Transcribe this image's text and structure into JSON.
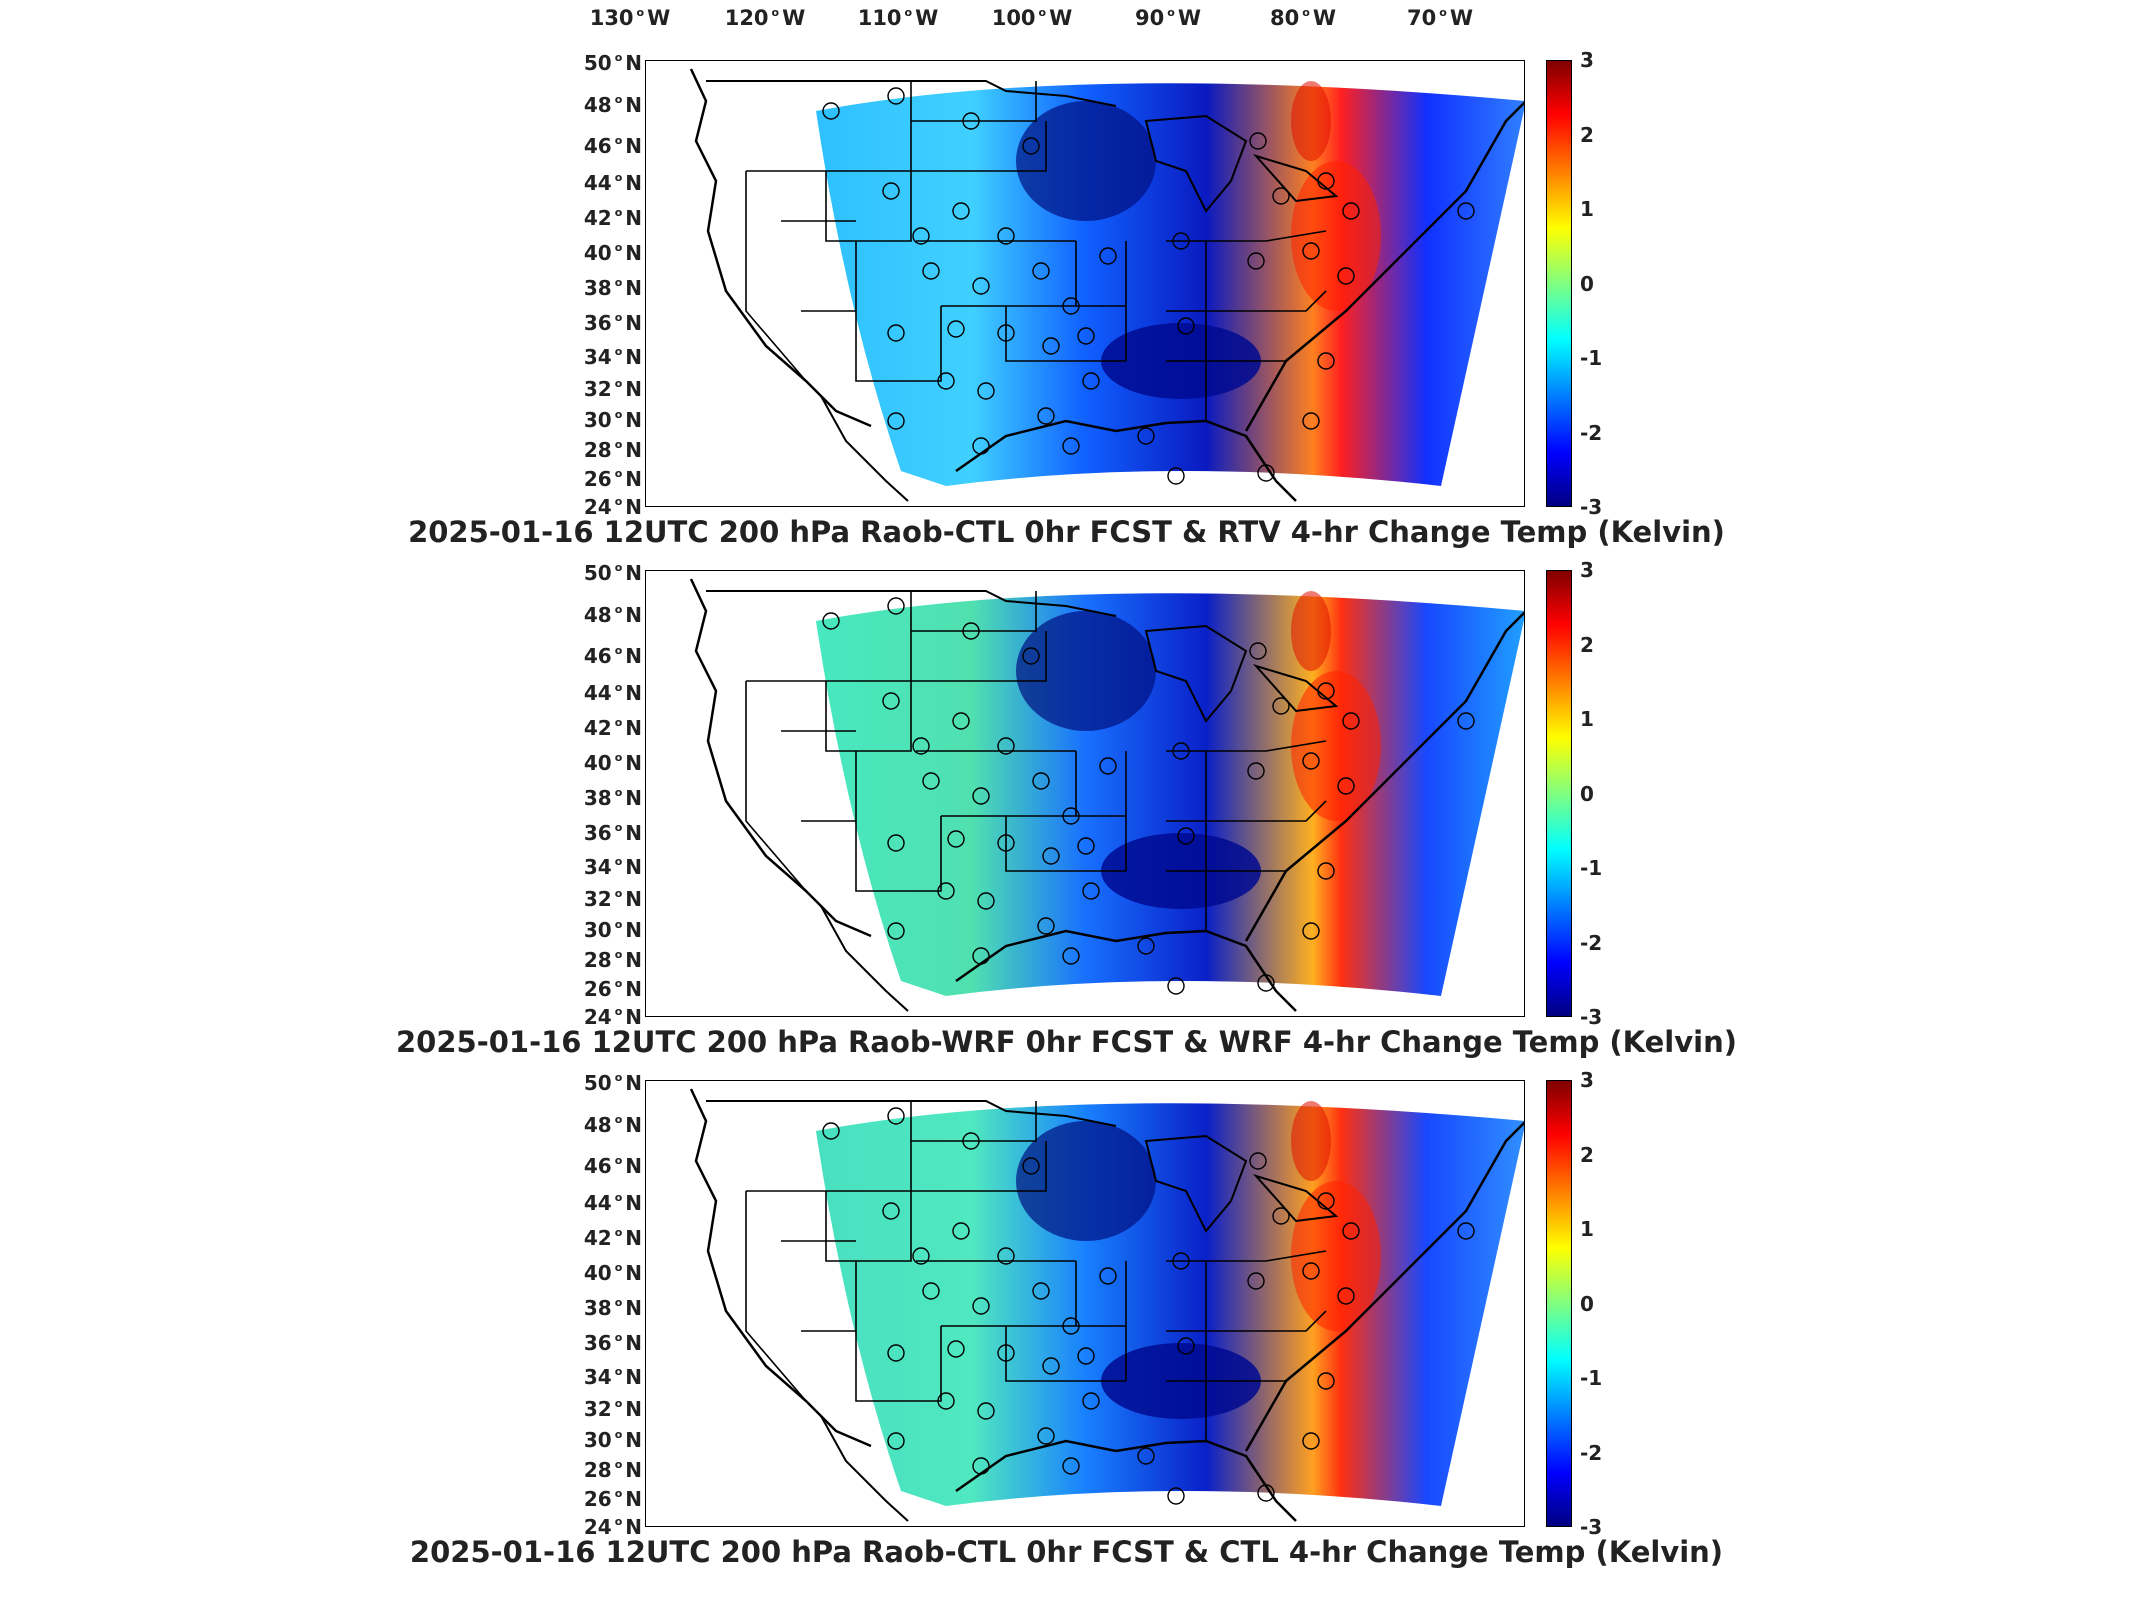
{
  "longitude_labels": [
    {
      "deg": "130",
      "dir": "W"
    },
    {
      "deg": "120",
      "dir": "W"
    },
    {
      "deg": "110",
      "dir": "W"
    },
    {
      "deg": "100",
      "dir": "W"
    },
    {
      "deg": "90",
      "dir": "W"
    },
    {
      "deg": "80",
      "dir": "W"
    },
    {
      "deg": "70",
      "dir": "W"
    }
  ],
  "latitude_labels": [
    {
      "deg": "50",
      "dir": "N"
    },
    {
      "deg": "48",
      "dir": "N"
    },
    {
      "deg": "46",
      "dir": "N"
    },
    {
      "deg": "44",
      "dir": "N"
    },
    {
      "deg": "42",
      "dir": "N"
    },
    {
      "deg": "40",
      "dir": "N"
    },
    {
      "deg": "38",
      "dir": "N"
    },
    {
      "deg": "36",
      "dir": "N"
    },
    {
      "deg": "34",
      "dir": "N"
    },
    {
      "deg": "32",
      "dir": "N"
    },
    {
      "deg": "30",
      "dir": "N"
    },
    {
      "deg": "28",
      "dir": "N"
    },
    {
      "deg": "26",
      "dir": "N"
    },
    {
      "deg": "24",
      "dir": "N"
    }
  ],
  "colorbar": {
    "ticks": [
      "3",
      "2",
      "1",
      "0",
      "-1",
      "-2",
      "-3"
    ],
    "range": [
      -3,
      3
    ],
    "colormap": "jet",
    "colors": [
      "#800000",
      "#ff0000",
      "#ff8000",
      "#ffff00",
      "#80ff80",
      "#00ffff",
      "#0080ff",
      "#0000ff",
      "#000080"
    ]
  },
  "panels": [
    {
      "title": "2025-01-16 12UTC 200 hPa Raob-CTL 0hr FCST & RTV 4-hr Change Temp (Kelvin)"
    },
    {
      "title": "2025-01-16 12UTC 200 hPa Raob-WRF 0hr FCST & WRF 4-hr Change Temp (Kelvin)"
    },
    {
      "title": "2025-01-16 12UTC 200 hPa Raob-CTL 0hr FCST & CTL 4-hr Change Temp (Kelvin)"
    }
  ]
}
